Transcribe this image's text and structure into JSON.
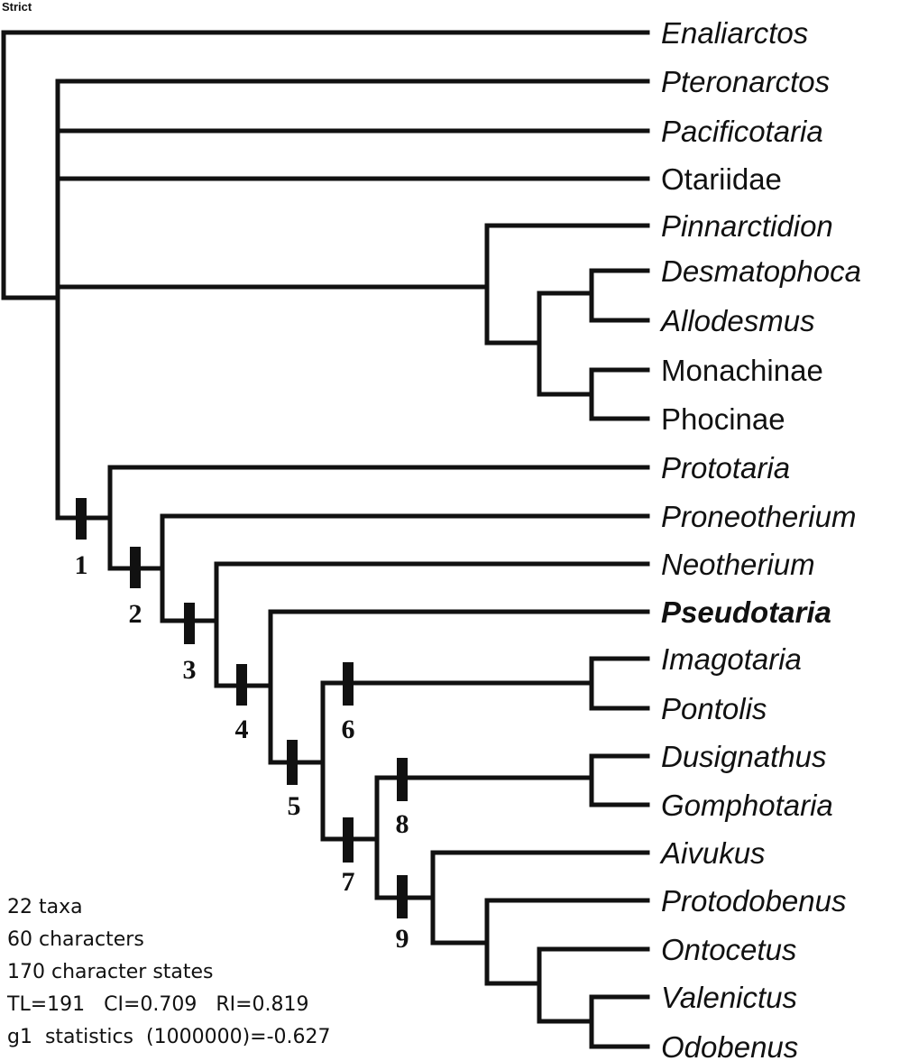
{
  "title": "Strict",
  "taxa": [
    {
      "name": "Enaliarctos",
      "style": "italic"
    },
    {
      "name": "Pteronarctos",
      "style": "italic"
    },
    {
      "name": "Pacificotaria",
      "style": "italic"
    },
    {
      "name": "Otariidae",
      "style": "normal"
    },
    {
      "name": "Pinnarctidion",
      "style": "italic"
    },
    {
      "name": "Desmatophoca",
      "style": "italic"
    },
    {
      "name": "Allodesmus",
      "style": "italic"
    },
    {
      "name": "Monachinae",
      "style": "normal"
    },
    {
      "name": "Phocinae",
      "style": "normal"
    },
    {
      "name": "Prototaria",
      "style": "italic"
    },
    {
      "name": "Proneotherium",
      "style": "italic"
    },
    {
      "name": "Neotherium",
      "style": "italic"
    },
    {
      "name": "Pseudotaria",
      "style": "bold-italic"
    },
    {
      "name": "Imagotaria",
      "style": "italic"
    },
    {
      "name": "Pontolis",
      "style": "italic"
    },
    {
      "name": "Dusignathus",
      "style": "italic"
    },
    {
      "name": "Gomphotaria",
      "style": "italic"
    },
    {
      "name": "Aivukus",
      "style": "italic"
    },
    {
      "name": "Protodobenus",
      "style": "italic"
    },
    {
      "name": "Ontocetus",
      "style": "italic"
    },
    {
      "name": "Valenictus",
      "style": "italic"
    },
    {
      "name": "Odobenus",
      "style": "italic"
    }
  ],
  "node_labels": [
    "1",
    "2",
    "3",
    "4",
    "5",
    "6",
    "7",
    "8",
    "9"
  ],
  "stats": [
    "22 taxa",
    "60 characters",
    "170 character states",
    "TL=191   CI=0.709   RI=0.819",
    "g1  statistics  (1000000)=-0.627"
  ],
  "colors": {
    "line": "#111111",
    "background": "#ffffff"
  }
}
